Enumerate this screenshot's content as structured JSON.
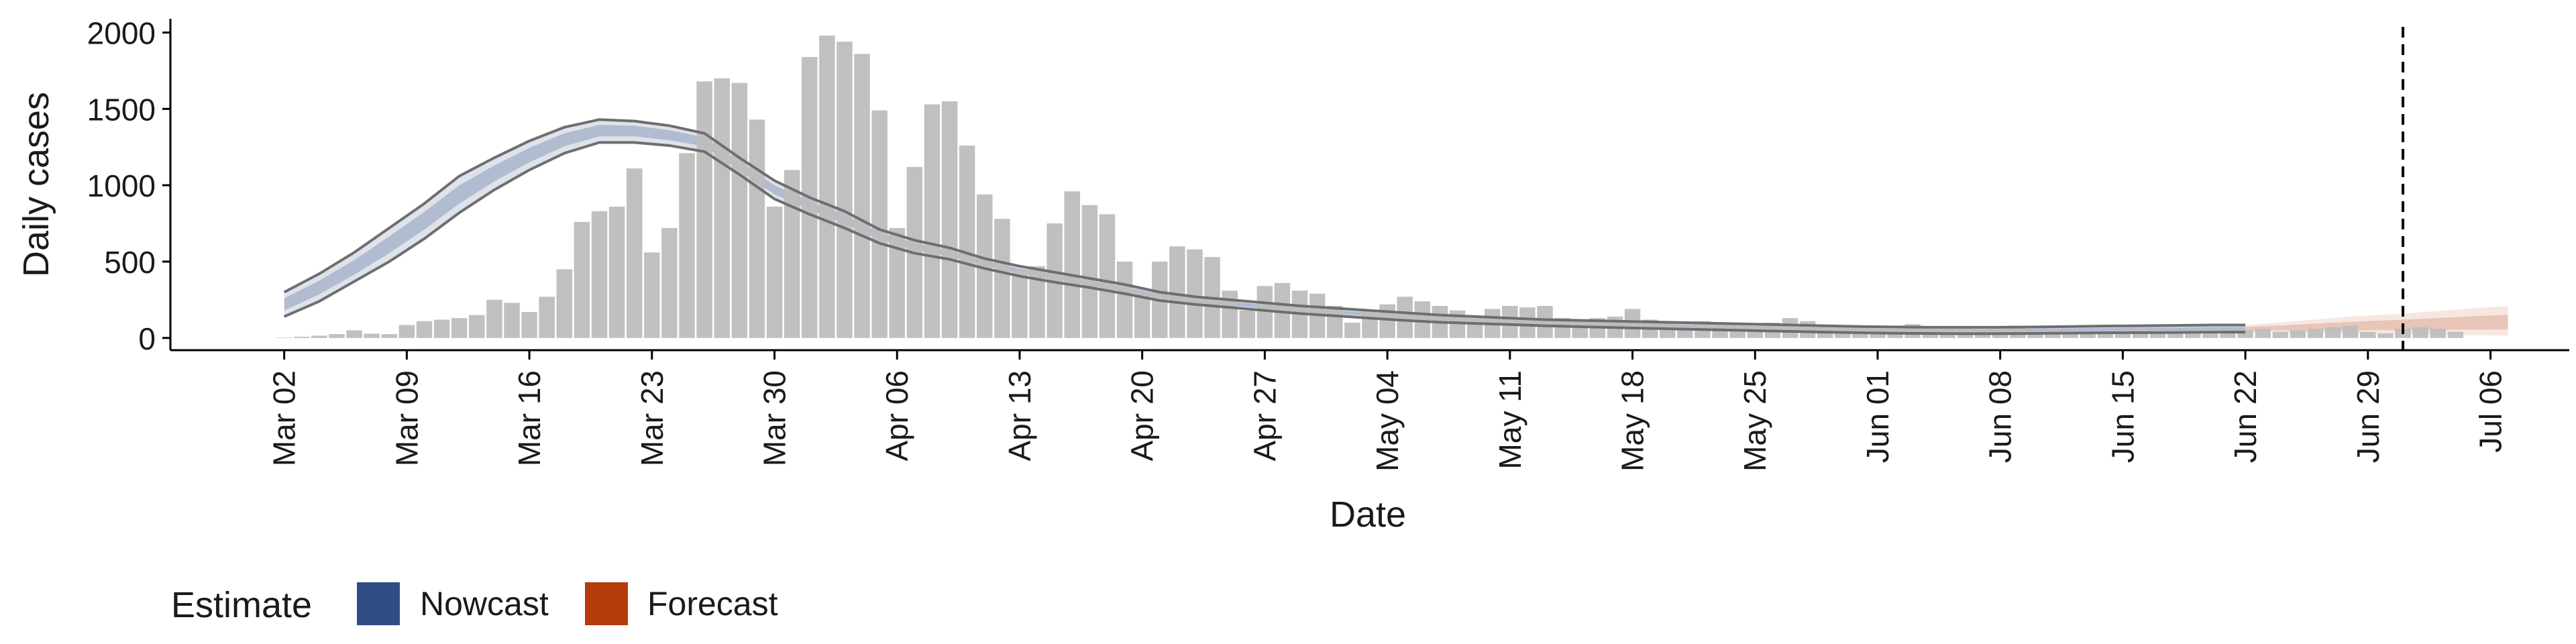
{
  "chart_data": {
    "type": "bar",
    "title": "",
    "xlabel": "Date",
    "ylabel": "Daily cases",
    "ylim": [
      -80,
      2090
    ],
    "yticks": [
      0,
      500,
      1000,
      1500,
      2000
    ],
    "yticks_text": [
      "0",
      "500",
      "1000",
      "1500",
      "2000"
    ],
    "x_start": "2020-03-01",
    "xticks": [
      {
        "day": 1,
        "label": "Mar 02"
      },
      {
        "day": 8,
        "label": "Mar 09"
      },
      {
        "day": 15,
        "label": "Mar 16"
      },
      {
        "day": 22,
        "label": "Mar 23"
      },
      {
        "day": 29,
        "label": "Mar 30"
      },
      {
        "day": 36,
        "label": "Apr 06"
      },
      {
        "day": 43,
        "label": "Apr 13"
      },
      {
        "day": 50,
        "label": "Apr 20"
      },
      {
        "day": 57,
        "label": "Apr 27"
      },
      {
        "day": 64,
        "label": "May 04"
      },
      {
        "day": 71,
        "label": "May 11"
      },
      {
        "day": 78,
        "label": "May 18"
      },
      {
        "day": 85,
        "label": "May 25"
      },
      {
        "day": 92,
        "label": "Jun 01"
      },
      {
        "day": 99,
        "label": "Jun 08"
      },
      {
        "day": 106,
        "label": "Jun 15"
      },
      {
        "day": 113,
        "label": "Jun 22"
      },
      {
        "day": 120,
        "label": "Jun 29"
      },
      {
        "day": 127,
        "label": "Jul 06"
      }
    ],
    "xlim_days": [
      -5.5,
      131.5
    ],
    "reported_cases": [
      0,
      3,
      8,
      15,
      25,
      50,
      28,
      25,
      85,
      110,
      120,
      130,
      150,
      250,
      230,
      170,
      270,
      450,
      760,
      830,
      860,
      1110,
      560,
      720,
      1210,
      1680,
      1700,
      1670,
      1430,
      860,
      1100,
      1840,
      1980,
      1940,
      1860,
      1490,
      720,
      1120,
      1530,
      1550,
      1260,
      940,
      780,
      450,
      470,
      750,
      960,
      870,
      810,
      500,
      300,
      500,
      600,
      580,
      530,
      310,
      180,
      340,
      360,
      310,
      290,
      210,
      100,
      180,
      220,
      270,
      240,
      210,
      180,
      130,
      190,
      210,
      200,
      210,
      130,
      120,
      130,
      140,
      190,
      120,
      110,
      80,
      110,
      90,
      90,
      80,
      100,
      130,
      110,
      80,
      80,
      70,
      60,
      60,
      90,
      50,
      60,
      70,
      50,
      50,
      80,
      40,
      50,
      40,
      40,
      40,
      40,
      60,
      40,
      40,
      30,
      40,
      50,
      50,
      60,
      40,
      50,
      60,
      70,
      80,
      40,
      30,
      60,
      70,
      60,
      40
    ],
    "bar_color": "#bdbdbd",
    "estimate_line_color": "#6e6e6e",
    "nowcast_band": {
      "day": [
        1,
        3,
        5,
        7,
        9,
        11,
        13,
        15,
        17,
        19,
        21,
        23,
        25,
        27,
        29,
        31,
        33,
        35,
        37,
        39,
        41,
        43,
        45,
        47,
        49,
        51,
        53,
        55,
        57,
        59,
        61,
        63,
        65,
        67,
        69,
        71,
        73,
        75,
        77,
        79,
        81,
        83,
        85,
        87,
        89,
        91,
        93,
        95,
        97,
        99,
        101,
        103,
        105,
        107,
        109,
        111,
        113
      ],
      "upper": [
        300,
        420,
        560,
        720,
        880,
        1060,
        1180,
        1290,
        1380,
        1430,
        1420,
        1390,
        1340,
        1180,
        1030,
        920,
        830,
        710,
        640,
        590,
        520,
        470,
        430,
        390,
        350,
        300,
        270,
        250,
        230,
        210,
        195,
        180,
        165,
        150,
        140,
        130,
        120,
        115,
        110,
        105,
        100,
        95,
        90,
        85,
        80,
        75,
        72,
        70,
        70,
        70,
        72,
        75,
        78,
        80,
        82,
        85,
        85
      ],
      "median": [
        220,
        330,
        460,
        610,
        770,
        940,
        1080,
        1200,
        1300,
        1360,
        1360,
        1330,
        1290,
        1130,
        970,
        870,
        780,
        670,
        600,
        555,
        490,
        440,
        400,
        360,
        320,
        275,
        245,
        225,
        205,
        185,
        170,
        155,
        140,
        128,
        118,
        108,
        100,
        94,
        88,
        83,
        78,
        73,
        68,
        63,
        58,
        54,
        51,
        49,
        48,
        48,
        50,
        52,
        54,
        55,
        56,
        58,
        58
      ],
      "lower": [
        140,
        240,
        370,
        500,
        650,
        820,
        970,
        1100,
        1210,
        1280,
        1280,
        1260,
        1220,
        1070,
        910,
        810,
        720,
        620,
        555,
        515,
        455,
        405,
        365,
        330,
        290,
        245,
        220,
        200,
        180,
        160,
        145,
        130,
        115,
        103,
        95,
        88,
        80,
        74,
        68,
        63,
        58,
        53,
        48,
        43,
        38,
        34,
        31,
        29,
        28,
        28,
        30,
        32,
        34,
        35,
        36,
        38,
        38
      ]
    },
    "forecast_band": {
      "day": [
        113,
        116,
        119,
        122,
        125,
        128
      ],
      "upper": [
        85,
        110,
        140,
        160,
        185,
        210
      ],
      "median": [
        58,
        65,
        72,
        80,
        88,
        95
      ],
      "lower": [
        38,
        35,
        30,
        25,
        20,
        15
      ]
    },
    "vline_day": 122,
    "legend": {
      "title": "Estimate",
      "items": [
        {
          "label": "Nowcast",
          "color": "#304d85"
        },
        {
          "label": "Forecast",
          "color": "#b53a0a"
        }
      ]
    }
  }
}
